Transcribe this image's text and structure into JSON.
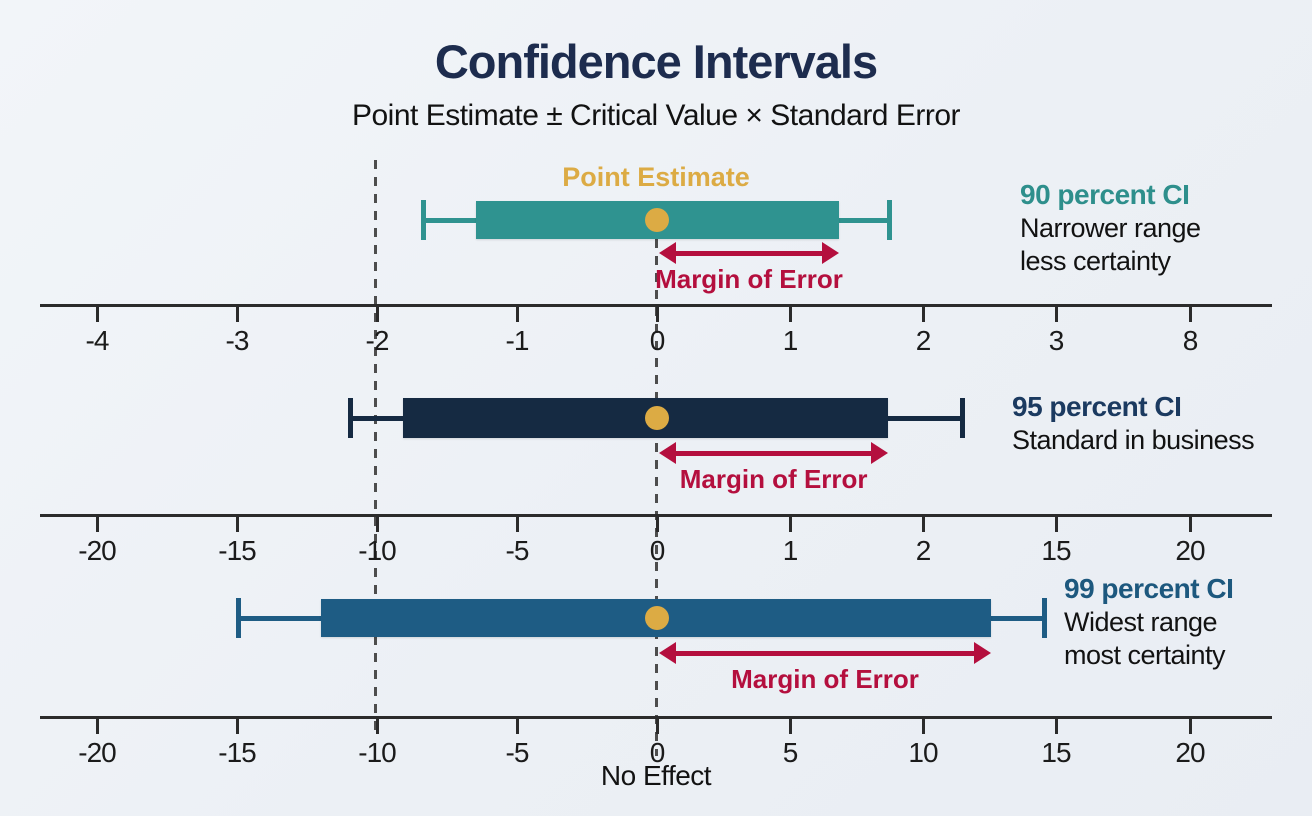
{
  "title": "Confidence Intervals",
  "subtitle": "Point Estimate ± Critical Value × Standard Error",
  "point_estimate_label": "Point Estimate",
  "margin_of_error_label": "Margin of Error",
  "no_effect_label": "No Effect",
  "colors": {
    "background": "#edf1f6",
    "title_navy": "#1d2c4e",
    "teal": "#2f9390",
    "teal_label": "#2e8f8c",
    "navy": "#152a42",
    "navy_label": "#1b3a60",
    "steel_blue": "#1e5c84",
    "steel_blue_label": "#1d587e",
    "gold": "#dcab44",
    "crimson": "#b40f3e",
    "axis": "#2b2b2b",
    "dashed_guide": "#4d4d4d"
  },
  "chart_data": {
    "type": "interval",
    "title": "Confidence Intervals",
    "subtitle": "Point Estimate ± Critical Value × Standard Error",
    "unit_note": "positions measured in axis tick spacings from the zero line",
    "point_estimate": 0,
    "rows": [
      {
        "name": "90 percent CI",
        "desc_lines": [
          "Narrower range",
          "less certainty"
        ],
        "bar_color": "#2f9390",
        "label_color": "#2e8f8c",
        "bar": [
          -1.32,
          1.33
        ],
        "whisker": [
          -1.7,
          1.7
        ],
        "point": 0,
        "moe": [
          0.02,
          1.33
        ],
        "show_point_estimate_label": true
      },
      {
        "name": "95 percent CI",
        "desc_lines": [
          "Standard in business"
        ],
        "bar_color": "#152a42",
        "label_color": "#1b3a60",
        "bar": [
          -1.85,
          1.69
        ],
        "whisker": [
          -2.23,
          2.23
        ],
        "point": 0,
        "moe": [
          0.02,
          1.69
        ],
        "show_point_estimate_label": false
      },
      {
        "name": "99 percent CI",
        "desc_lines": [
          "Widest range",
          "most certainty"
        ],
        "bar_color": "#1e5c84",
        "label_color": "#1d587e",
        "bar": [
          -2.45,
          2.44
        ],
        "whisker": [
          -3.05,
          2.83
        ],
        "point": 0,
        "moe": [
          0.02,
          2.44
        ],
        "show_point_estimate_label": false
      }
    ],
    "axes": [
      {
        "ticks": [
          "-4",
          "-3",
          "-2",
          "-1",
          "0",
          "1",
          "2",
          "3",
          "8"
        ]
      },
      {
        "ticks": [
          "-20",
          "-15",
          "-10",
          "-5",
          "0",
          "1",
          "2",
          "15",
          "20"
        ]
      },
      {
        "ticks": [
          "-20",
          "-15",
          "-10",
          "-5",
          "0",
          "5",
          "10",
          "15",
          "20"
        ]
      }
    ],
    "guide_positions_units": [
      -2.05,
      0
    ],
    "zero_line_label": "No Effect",
    "legend_position": "right",
    "grid": false
  }
}
